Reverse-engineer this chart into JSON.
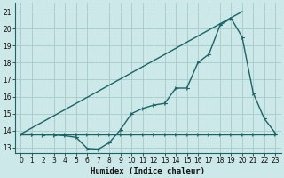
{
  "xlabel": "Humidex (Indice chaleur)",
  "bg_color": "#cce8e8",
  "grid_color": "#aacece",
  "line_color": "#1a6464",
  "xlim": [
    -0.5,
    23.5
  ],
  "ylim": [
    12.7,
    21.5
  ],
  "xticks": [
    0,
    1,
    2,
    3,
    4,
    5,
    6,
    7,
    8,
    9,
    10,
    11,
    12,
    13,
    14,
    15,
    16,
    17,
    18,
    19,
    20,
    21,
    22,
    23
  ],
  "yticks": [
    13,
    14,
    15,
    16,
    17,
    18,
    19,
    20,
    21
  ],
  "line_flat": {
    "x": [
      0,
      1,
      2,
      3,
      4,
      5,
      6,
      7,
      8,
      9,
      10,
      11,
      12,
      13,
      14,
      15,
      16,
      17,
      18,
      19,
      20,
      21,
      22,
      23
    ],
    "y": [
      13.8,
      13.8,
      13.8,
      13.8,
      13.8,
      13.8,
      13.8,
      13.8,
      13.8,
      13.8,
      13.8,
      13.8,
      13.8,
      13.8,
      13.8,
      13.8,
      13.8,
      13.8,
      13.8,
      13.8,
      13.8,
      13.8,
      13.8,
      13.8
    ]
  },
  "line_curved": {
    "x": [
      0,
      1,
      2,
      3,
      4,
      5,
      6,
      7,
      8,
      9,
      10,
      11,
      12,
      13,
      14,
      15,
      16,
      17,
      18,
      19,
      20,
      21,
      22,
      23
    ],
    "y": [
      13.8,
      13.8,
      13.75,
      13.75,
      13.7,
      13.6,
      12.95,
      12.9,
      13.3,
      14.05,
      15.0,
      15.3,
      15.5,
      15.6,
      16.5,
      16.5,
      18.0,
      18.5,
      20.2,
      20.6,
      19.5,
      16.2,
      14.7,
      13.85
    ]
  },
  "line_straight": {
    "x": [
      0,
      20
    ],
    "y": [
      13.8,
      21.0
    ]
  }
}
